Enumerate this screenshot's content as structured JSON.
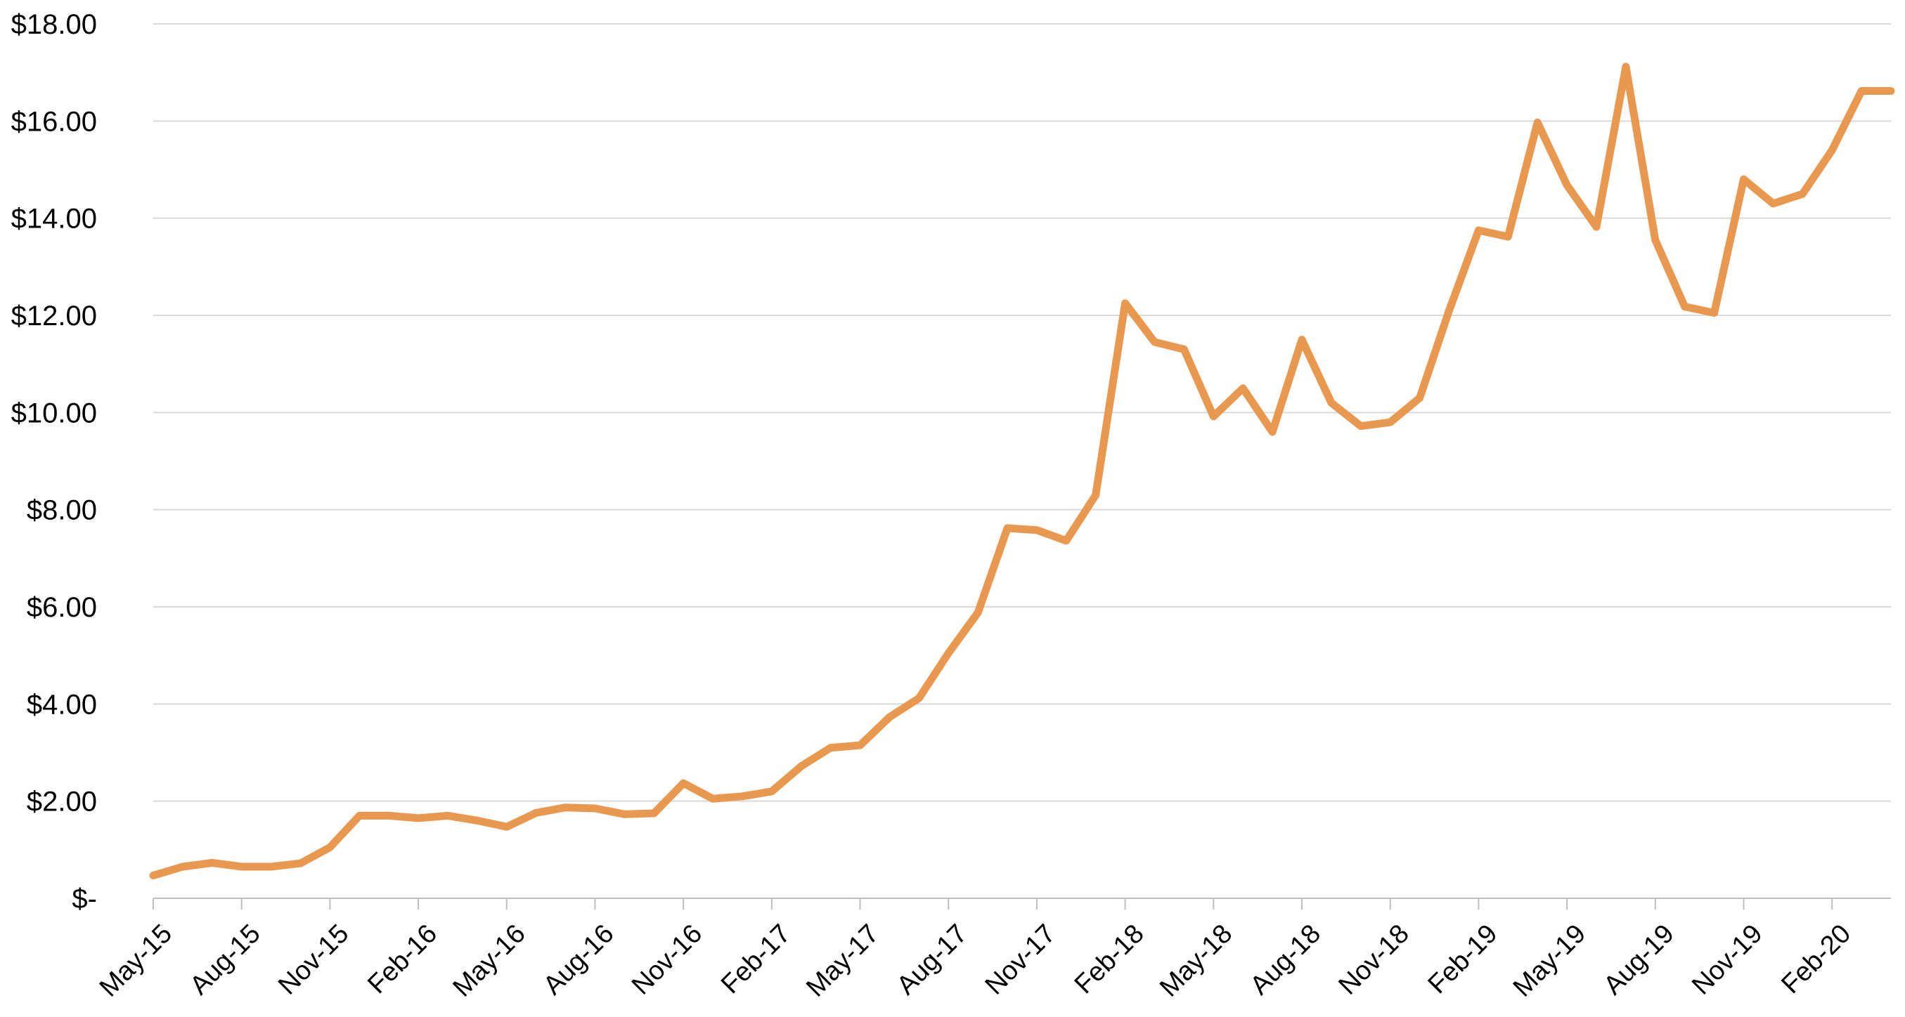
{
  "chart_data": {
    "type": "line",
    "title": "",
    "xlabel": "",
    "ylabel": "",
    "ylim": [
      0,
      18
    ],
    "grid": true,
    "line_color": "#E9994F",
    "y_ticks": [
      "$-",
      "$2.00",
      "$4.00",
      "$6.00",
      "$8.00",
      "$10.00",
      "$12.00",
      "$14.00",
      "$16.00",
      "$18.00"
    ],
    "x_tick_labels": [
      "May-15",
      "Aug-15",
      "Nov-15",
      "Feb-16",
      "May-16",
      "Aug-16",
      "Nov-16",
      "Feb-17",
      "May-17",
      "Aug-17",
      "Nov-17",
      "Feb-18",
      "May-18",
      "Aug-18",
      "Nov-18",
      "Feb-19",
      "May-19",
      "Aug-19",
      "Nov-19",
      "Feb-20"
    ],
    "series": [
      {
        "values": [
          0.47,
          0.65,
          0.73,
          0.65,
          0.65,
          0.72,
          1.05,
          1.7,
          1.7,
          1.65,
          1.7,
          1.6,
          1.47,
          1.76,
          1.87,
          1.85,
          1.73,
          1.75,
          2.37,
          2.05,
          2.1,
          2.2,
          2.72,
          3.1,
          3.15,
          3.73,
          4.12,
          5.05,
          5.88,
          7.62,
          7.58,
          7.36,
          8.3,
          12.25,
          11.45,
          11.3,
          9.92,
          10.5,
          9.6,
          11.5,
          10.2,
          9.72,
          9.8,
          10.3,
          12.1,
          13.75,
          13.62,
          15.97,
          14.68,
          13.82,
          17.12,
          13.55,
          12.18,
          12.05,
          14.8,
          14.3,
          14.5,
          15.4,
          16.62,
          16.62
        ]
      }
    ]
  }
}
